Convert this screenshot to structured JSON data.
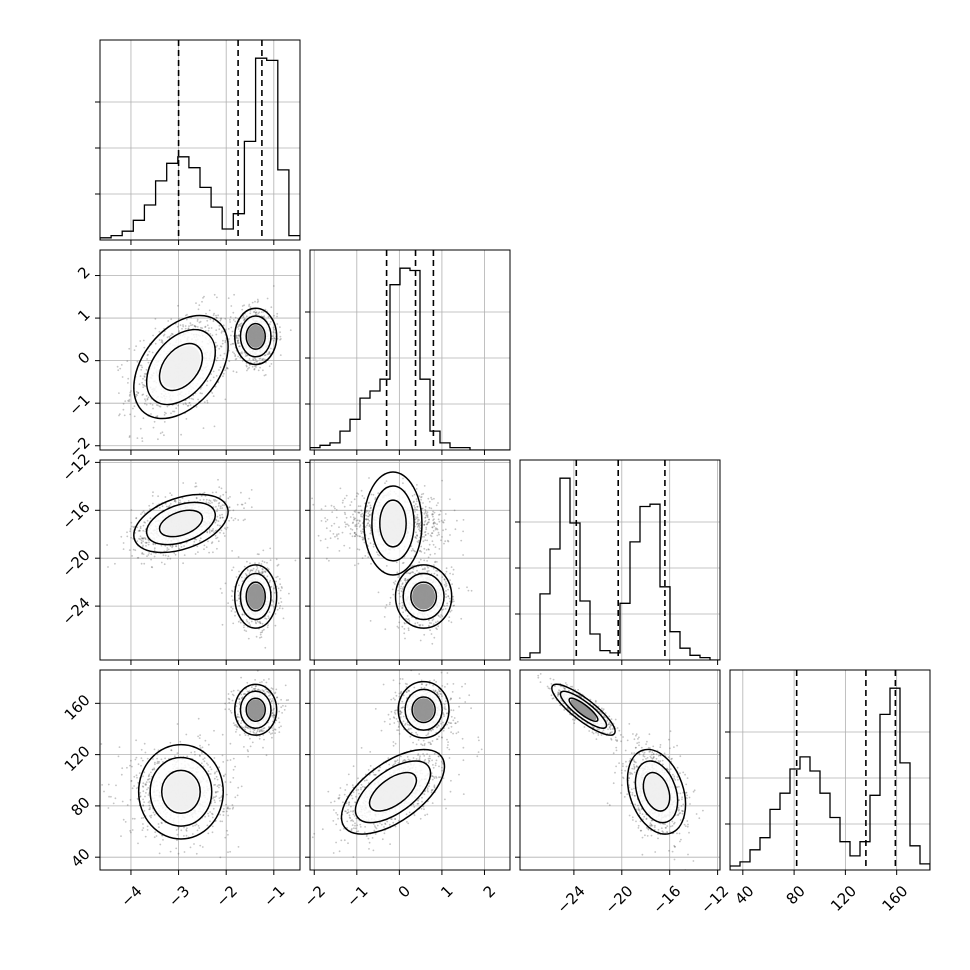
{
  "chart_data": {
    "type": "corner",
    "axis_ranges": [
      {
        "min": -4.65,
        "max": -0.45
      },
      {
        "min": -2.1,
        "max": 2.6
      },
      {
        "min": -28.5,
        "max": -11.8
      },
      {
        "min": 30,
        "max": 186
      }
    ],
    "ticks": [
      {
        "values": [
          -4,
          -3,
          -2,
          -1
        ],
        "labels": [
          "−4",
          "−3",
          "−2",
          "−1"
        ]
      },
      {
        "values": [
          -2,
          -1,
          0,
          1,
          2
        ],
        "labels": [
          "−2",
          "−1",
          "0",
          "1",
          "2"
        ]
      },
      {
        "values": [
          -24,
          -20,
          -16,
          -12
        ],
        "labels": [
          "−24",
          "−20",
          "−16",
          "−12"
        ]
      },
      {
        "values": [
          40,
          80,
          120,
          160
        ],
        "labels": [
          "40",
          "80",
          "120",
          "160"
        ]
      }
    ],
    "histograms": [
      {
        "counts": [
          1,
          2,
          4,
          9,
          16,
          27,
          35,
          38,
          33,
          24,
          15,
          5,
          12,
          45,
          83,
          82,
          32,
          2
        ],
        "quantiles": [
          -3.0,
          -1.75,
          -1.25
        ]
      },
      {
        "counts": [
          1,
          2,
          3,
          8,
          13,
          22,
          25,
          30,
          70,
          77,
          76,
          30,
          8,
          3,
          1,
          1,
          0,
          0,
          0,
          0
        ],
        "quantiles": [
          -0.3,
          0.38,
          0.8
        ]
      },
      {
        "counts": [
          1,
          3,
          28,
          47,
          77,
          58,
          25,
          11,
          4,
          3,
          24,
          50,
          65,
          66,
          31,
          12,
          5,
          2,
          1,
          0
        ],
        "quantiles": [
          -23.8,
          -20.3,
          -16.4
        ]
      },
      {
        "counts": [
          2,
          4,
          10,
          16,
          30,
          38,
          50,
          56,
          49,
          38,
          26,
          14,
          7,
          14,
          37,
          77,
          90,
          53,
          12,
          3
        ],
        "quantiles": [
          82,
          136,
          159
        ]
      }
    ],
    "modes": [
      {
        "weight": 0.6,
        "mean": [
          -2.95,
          -0.15,
          -17.1,
          91
        ],
        "sd": [
          0.45,
          0.55,
          1.1,
          15
        ],
        "rho": {
          "0-1": 0.4,
          "0-2": 0.4,
          "0-3": 0.0,
          "1-2": 0.0,
          "1-3": 0.6,
          "2-3": -0.3
        }
      },
      {
        "weight": 0.4,
        "mean": [
          -1.38,
          0.57,
          -23.2,
          155
        ],
        "sd": [
          0.2,
          0.3,
          1.2,
          9
        ],
        "rho": {
          "0-1": 0.0,
          "0-2": 0.0,
          "0-3": 0.0,
          "1-2": 0.0,
          "1-3": 0.0,
          "2-3": -0.85
        }
      }
    ],
    "contour_levels_sigma": [
      1.0,
      1.6,
      2.2
    ],
    "grid": true,
    "quantile_lines": "dashed"
  }
}
